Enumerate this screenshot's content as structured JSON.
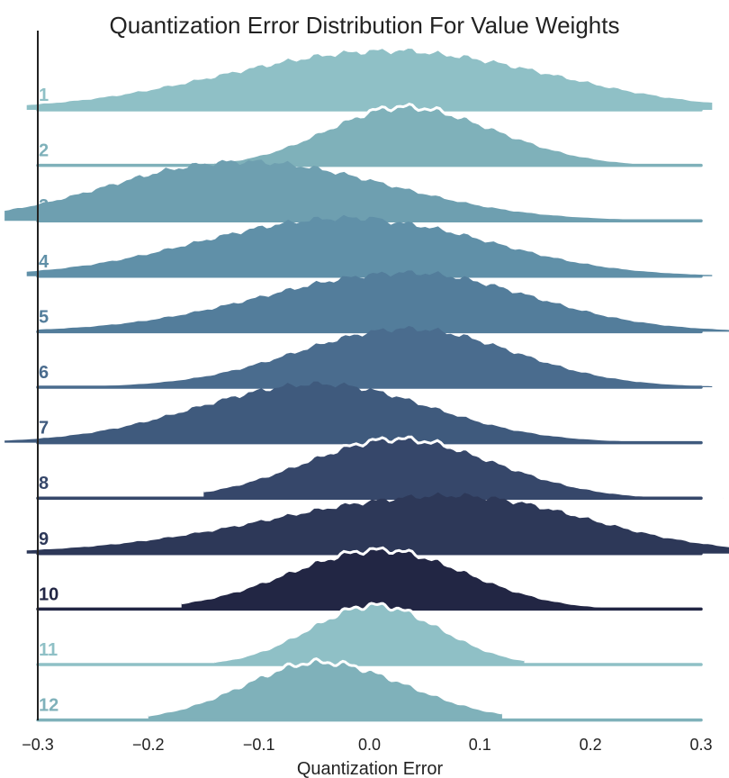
{
  "chart_data": {
    "type": "ridgeline",
    "title": "Quantization Error Distribution For Value Weights",
    "xlabel": "Quantization Error",
    "ylabel": "",
    "xlim": [
      -0.3,
      0.3
    ],
    "xticks": [
      -0.3,
      -0.2,
      -0.1,
      0.0,
      0.1,
      0.2,
      0.3
    ],
    "xtick_labels": [
      "−0.3",
      "−0.2",
      "−0.1",
      "0.0",
      "0.1",
      "0.2",
      "0.3"
    ],
    "grid": false,
    "series": [
      {
        "name": "1",
        "label": "1",
        "color": "#8fc0c6",
        "peak": 0.05,
        "spread_left": 0.16,
        "spread_right": 0.13,
        "support": [
          -0.31,
          0.31
        ],
        "bimodal": true,
        "white_outline": false
      },
      {
        "name": "2",
        "label": "2",
        "color": "#7fb1ba",
        "peak": 0.03,
        "spread_left": 0.07,
        "spread_right": 0.085,
        "support": [
          -0.14,
          0.3
        ],
        "bimodal": false,
        "white_outline": true
      },
      {
        "name": "3",
        "label": "3",
        "color": "#6e9fb0",
        "peak": -0.09,
        "spread_left": 0.12,
        "spread_right": 0.12,
        "support": [
          -0.33,
          0.3
        ],
        "bimodal": true,
        "white_outline": false
      },
      {
        "name": "4",
        "label": "4",
        "color": "#6090a8",
        "peak": 0.01,
        "spread_left": 0.14,
        "spread_right": 0.11,
        "support": [
          -0.31,
          0.31
        ],
        "bimodal": true,
        "white_outline": false
      },
      {
        "name": "5",
        "label": "5",
        "color": "#537d9b",
        "peak": 0.035,
        "spread_left": 0.13,
        "spread_right": 0.11,
        "support": [
          -0.3,
          0.33
        ],
        "bimodal": false,
        "white_outline": false
      },
      {
        "name": "6",
        "label": "6",
        "color": "#4a6c8e",
        "peak": 0.035,
        "spread_left": 0.1,
        "spread_right": 0.095,
        "support": [
          -0.3,
          0.31
        ],
        "bimodal": false,
        "white_outline": false
      },
      {
        "name": "7",
        "label": "7",
        "color": "#3f5a7d",
        "peak": -0.045,
        "spread_left": 0.11,
        "spread_right": 0.1,
        "support": [
          -0.33,
          0.3
        ],
        "bimodal": false,
        "white_outline": false
      },
      {
        "name": "8",
        "label": "8",
        "color": "#36476a",
        "peak": 0.025,
        "spread_left": 0.085,
        "spread_right": 0.09,
        "support": [
          -0.15,
          0.32
        ],
        "bimodal": false,
        "white_outline": true
      },
      {
        "name": "9",
        "label": "9",
        "color": "#2d3858",
        "peak": 0.075,
        "spread_left": 0.16,
        "spread_right": 0.12,
        "support": [
          -0.31,
          0.33
        ],
        "bimodal": false,
        "white_outline": false
      },
      {
        "name": "10",
        "label": "10",
        "color": "#222644",
        "peak": 0.01,
        "spread_left": 0.085,
        "spread_right": 0.08,
        "support": [
          -0.17,
          0.3
        ],
        "bimodal": false,
        "white_outline": true
      },
      {
        "name": "11",
        "label": "11",
        "color": "#8fc0c6",
        "peak": 0.005,
        "spread_left": 0.06,
        "spread_right": 0.06,
        "support": [
          -0.14,
          0.14
        ],
        "bimodal": false,
        "white_outline": true
      },
      {
        "name": "12",
        "label": "12",
        "color": "#7fb1ba",
        "peak": -0.045,
        "spread_left": 0.07,
        "spread_right": 0.08,
        "support": [
          -0.2,
          0.12
        ],
        "bimodal": false,
        "white_outline": true
      }
    ]
  }
}
